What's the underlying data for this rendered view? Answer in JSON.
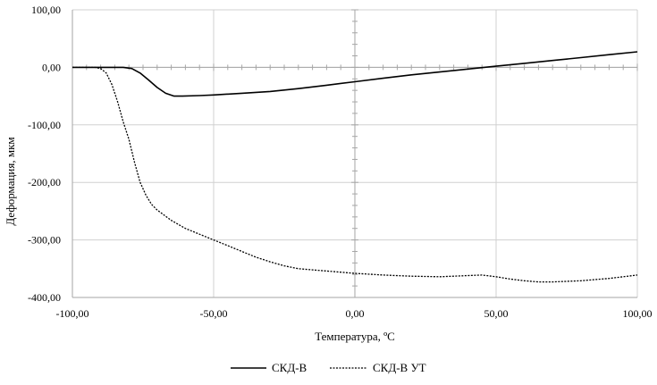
{
  "chart_data": {
    "type": "line",
    "title": "",
    "xlabel": "Температура, ºC",
    "ylabel": "Деформация, мкм",
    "xlim": [
      -100,
      100
    ],
    "ylim": [
      -400,
      100
    ],
    "x_ticks": [
      -100,
      -50,
      0,
      50,
      100
    ],
    "y_ticks": [
      100,
      0,
      -100,
      -200,
      -300,
      -400
    ],
    "x_tick_labels": [
      "-100,00",
      "-50,00",
      "0,00",
      "50,00",
      "100,00"
    ],
    "y_tick_labels": [
      "100,00",
      "0,00",
      "-100,00",
      "-200,00",
      "-300,00",
      "-400,00"
    ],
    "grid": true,
    "legend_position": "bottom",
    "series": [
      {
        "name": "СКД-В",
        "style": "solid",
        "color": "#000000",
        "points": [
          [
            -100,
            0
          ],
          [
            -90,
            0
          ],
          [
            -82,
            0
          ],
          [
            -79,
            -2
          ],
          [
            -76,
            -10
          ],
          [
            -73,
            -22
          ],
          [
            -70,
            -35
          ],
          [
            -67,
            -45
          ],
          [
            -64,
            -50
          ],
          [
            -61,
            -50
          ],
          [
            -55,
            -49
          ],
          [
            -50,
            -48
          ],
          [
            -40,
            -45
          ],
          [
            -30,
            -42
          ],
          [
            -20,
            -37
          ],
          [
            -10,
            -31
          ],
          [
            0,
            -25
          ],
          [
            10,
            -19
          ],
          [
            20,
            -13
          ],
          [
            30,
            -8
          ],
          [
            40,
            -3
          ],
          [
            50,
            2
          ],
          [
            60,
            7
          ],
          [
            70,
            12
          ],
          [
            80,
            17
          ],
          [
            90,
            22
          ],
          [
            100,
            27
          ]
        ]
      },
      {
        "name": "СКД-В УТ",
        "style": "dashed",
        "color": "#000000",
        "points": [
          [
            -100,
            0
          ],
          [
            -92,
            0
          ],
          [
            -90,
            -2
          ],
          [
            -88,
            -10
          ],
          [
            -86,
            -30
          ],
          [
            -84,
            -60
          ],
          [
            -82,
            -95
          ],
          [
            -80,
            -125
          ],
          [
            -78,
            -165
          ],
          [
            -76,
            -200
          ],
          [
            -74,
            -222
          ],
          [
            -72,
            -238
          ],
          [
            -70,
            -248
          ],
          [
            -65,
            -266
          ],
          [
            -60,
            -280
          ],
          [
            -55,
            -290
          ],
          [
            -50,
            -300
          ],
          [
            -45,
            -310
          ],
          [
            -40,
            -320
          ],
          [
            -35,
            -330
          ],
          [
            -30,
            -338
          ],
          [
            -25,
            -345
          ],
          [
            -20,
            -350
          ],
          [
            -15,
            -352
          ],
          [
            -10,
            -354
          ],
          [
            -5,
            -356
          ],
          [
            0,
            -358
          ],
          [
            10,
            -361
          ],
          [
            20,
            -363
          ],
          [
            30,
            -364
          ],
          [
            35,
            -363
          ],
          [
            40,
            -362
          ],
          [
            45,
            -361
          ],
          [
            50,
            -364
          ],
          [
            55,
            -368
          ],
          [
            60,
            -371
          ],
          [
            65,
            -373
          ],
          [
            70,
            -373
          ],
          [
            80,
            -371
          ],
          [
            90,
            -367
          ],
          [
            100,
            -361
          ]
        ]
      }
    ]
  }
}
